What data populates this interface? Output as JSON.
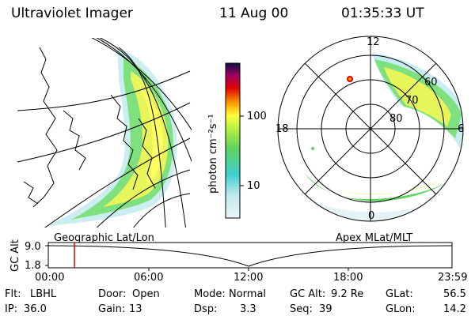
{
  "header": {
    "instrument": "Ultraviolet Imager",
    "date": "11 Aug 00",
    "time": "01:35:33 UT"
  },
  "colorbar": {
    "label": "photon cm⁻²s⁻¹",
    "ticks": [
      "100",
      "10"
    ],
    "scale": "log"
  },
  "polar_plot": {
    "mlt_labels": [
      "12",
      "18",
      "6",
      "0"
    ],
    "lat_labels": [
      "60",
      "70",
      "80"
    ]
  },
  "panel_labels": {
    "left": "Geographic Lat/Lon",
    "right": "Apex MLat/MLT"
  },
  "altitude_track": {
    "ylabel": "GC Alt",
    "yticks": [
      "9.0",
      "1.8"
    ],
    "xticks": [
      "00:00",
      "06:00",
      "12:00",
      "18:00",
      "23:59"
    ],
    "current_time_marker": "01:35"
  },
  "info": {
    "flt": {
      "label": "Flt:",
      "value": "LBHL"
    },
    "ip": {
      "label": "IP:",
      "value": "36.0"
    },
    "door": {
      "label": "Door:",
      "value": "Open"
    },
    "gain": {
      "label": "Gain:",
      "value": "13"
    },
    "mode": {
      "label": "Mode:",
      "value": "Normal"
    },
    "dsp": {
      "label": "Dsp:",
      "value": "3.3"
    },
    "gcalt": {
      "label": "GC Alt:",
      "value": "9.2 Re"
    },
    "seq": {
      "label": "Seq:",
      "value": "39"
    },
    "glat": {
      "label": "GLat:",
      "value": "56.5"
    },
    "glon": {
      "label": "GLon:",
      "value": "14.2"
    }
  },
  "colors": {
    "low": "#d8eef2",
    "cyan": "#3fd0d0",
    "green": "#5ed35e",
    "yellow": "#ffff40",
    "orange": "#ffa000",
    "red": "#e00000",
    "max": "#101040"
  }
}
